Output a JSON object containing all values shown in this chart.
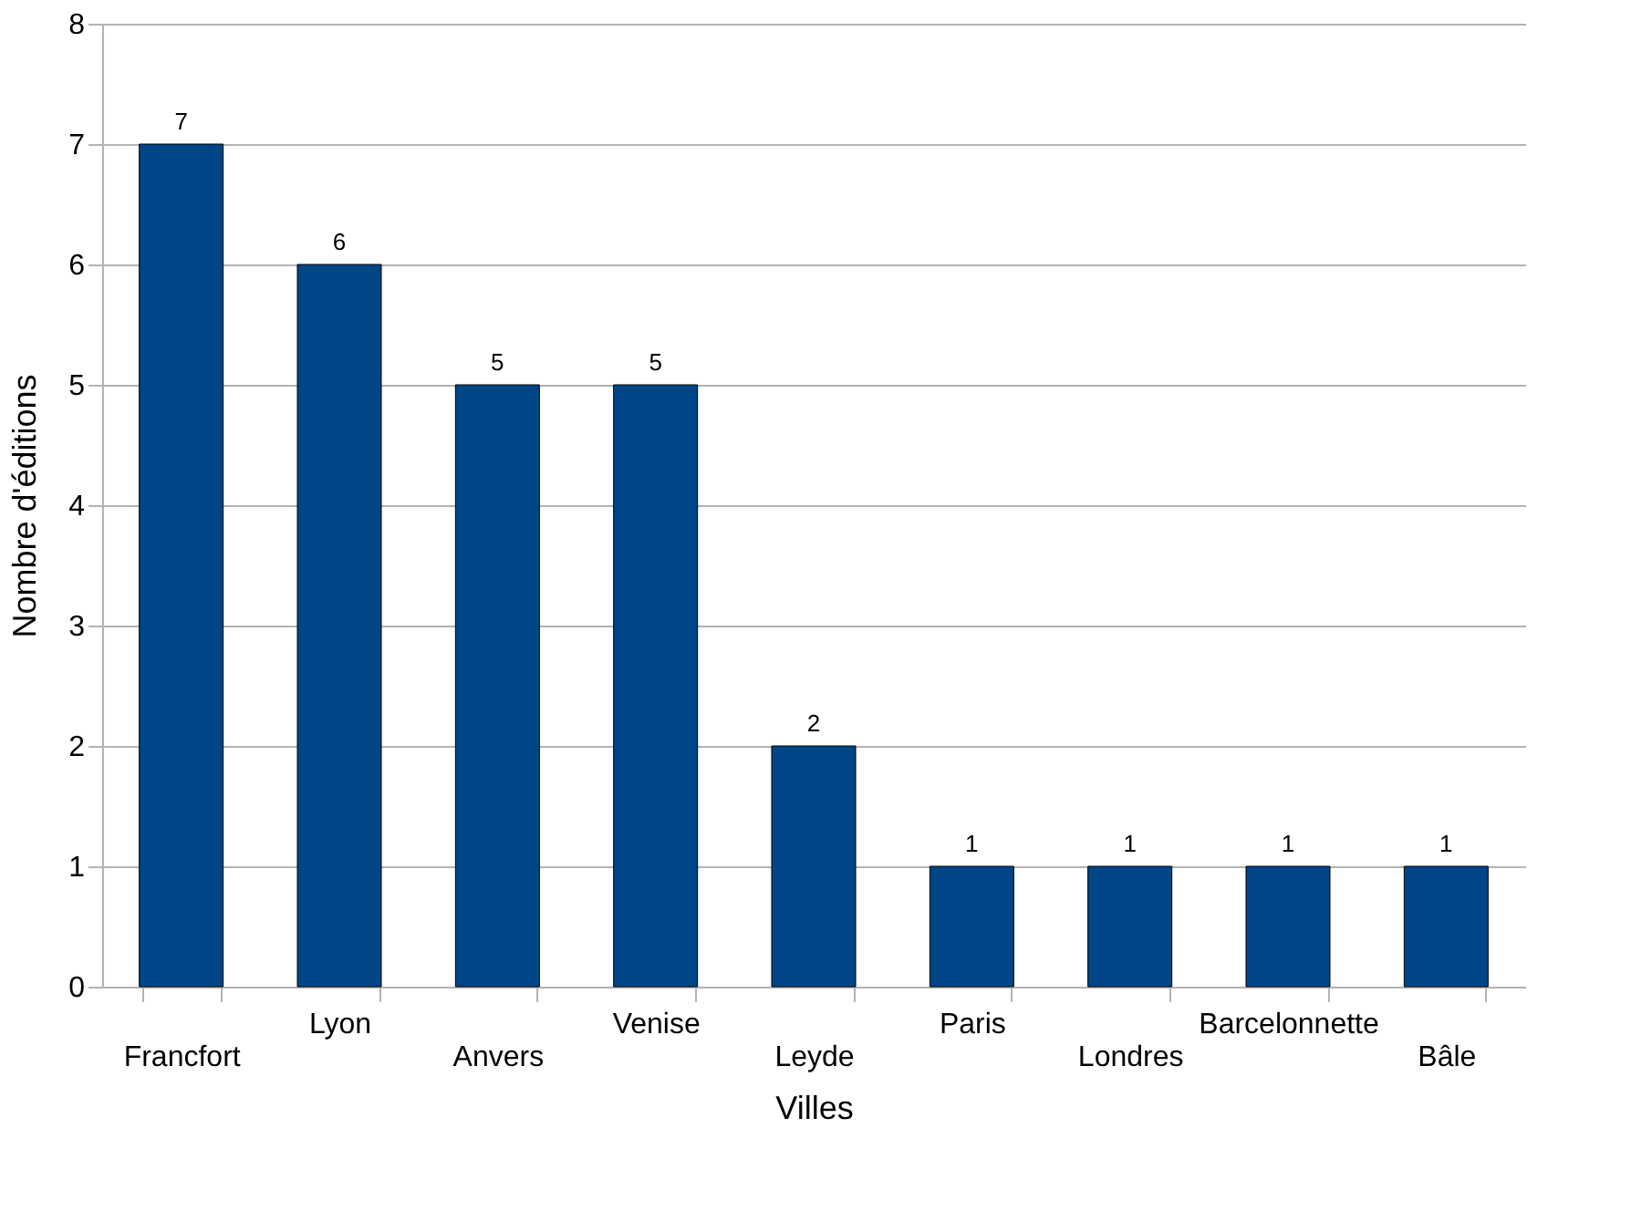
{
  "chart_data": {
    "type": "bar",
    "xlabel": "Villes",
    "ylabel": "Nombre d'éditions",
    "categories": [
      "Francfort",
      "Lyon",
      "Anvers",
      "Venise",
      "Leyde",
      "Paris",
      "Londres",
      "Barcelonnette",
      "Bâle"
    ],
    "values": [
      7,
      6,
      5,
      5,
      2,
      1,
      1,
      1,
      1
    ],
    "color": "#004586",
    "ylim": [
      0,
      8
    ],
    "yticks": [
      0,
      1,
      2,
      3,
      4,
      5,
      6,
      7,
      8
    ],
    "grid": "y",
    "data_labels": true
  }
}
